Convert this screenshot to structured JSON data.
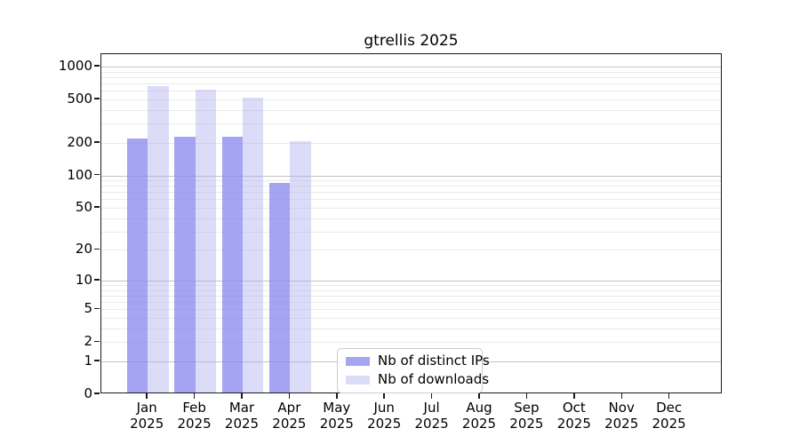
{
  "title": "gtrellis 2025",
  "chart_data": {
    "type": "bar",
    "title": "gtrellis 2025",
    "xlabel": "",
    "ylabel": "",
    "categories": [
      "Jan",
      "Feb",
      "Mar",
      "Apr",
      "May",
      "Jun",
      "Jul",
      "Aug",
      "Sep",
      "Oct",
      "Nov",
      "Dec"
    ],
    "x_year_label": "2025",
    "series": [
      {
        "name": "Nb of distinct IPs",
        "color": "#8888ee",
        "fill_rgba": "rgba(136,136,238,0.76)",
        "swatch_color": "#a5a5f0",
        "values": [
          210,
          218,
          217,
          82,
          null,
          null,
          null,
          null,
          null,
          null,
          null,
          null
        ]
      },
      {
        "name": "Nb of downloads",
        "color": "#d9d9f8",
        "fill_rgba": "rgba(170,170,240,0.41)",
        "swatch_color": "#dcdcf8",
        "values": [
          635,
          595,
          500,
          200,
          null,
          null,
          null,
          null,
          null,
          null,
          null,
          null
        ]
      }
    ],
    "y_ticks": [
      1000,
      500,
      200,
      100,
      50,
      20,
      10,
      5,
      2,
      1,
      0
    ],
    "y_scale": "log1p",
    "ylim": [
      0,
      1300
    ],
    "grid": true,
    "grid_major_decades": [
      1,
      10,
      100,
      1000
    ],
    "legend_position": "bottom-center"
  }
}
